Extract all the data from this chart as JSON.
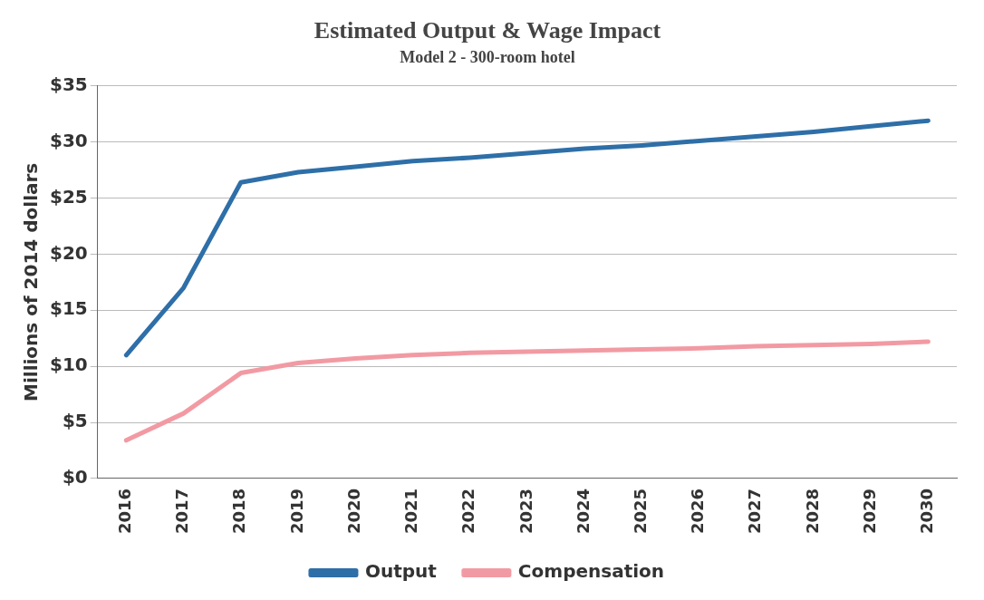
{
  "chart_data": {
    "type": "line",
    "title": "Estimated Output & Wage Impact",
    "subtitle": "Model 2 - 300-room hotel",
    "ylabel": "Millions of 2014 dollars",
    "categories": [
      "2016",
      "2017",
      "2018",
      "2019",
      "2020",
      "2021",
      "2022",
      "2023",
      "2024",
      "2025",
      "2026",
      "2027",
      "2028",
      "2029",
      "2030"
    ],
    "series": [
      {
        "name": "Output",
        "color": "#2e6fa8",
        "values": [
          11,
          17,
          26.4,
          27.3,
          27.8,
          28.3,
          28.6,
          29,
          29.4,
          29.7,
          30.1,
          30.5,
          30.9,
          31.4,
          31.9
        ]
      },
      {
        "name": "Compensation",
        "color": "#f29aa3",
        "values": [
          3.4,
          5.8,
          9.4,
          10.3,
          10.7,
          11,
          11.2,
          11.3,
          11.4,
          11.5,
          11.6,
          11.8,
          11.9,
          12,
          12.2
        ]
      }
    ],
    "ylim": [
      0,
      35
    ],
    "yticks": [
      {
        "value": 0,
        "label": "$0"
      },
      {
        "value": 5,
        "label": "$5"
      },
      {
        "value": 10,
        "label": "$10"
      },
      {
        "value": 15,
        "label": "$15"
      },
      {
        "value": 20,
        "label": "$20"
      },
      {
        "value": 25,
        "label": "$25"
      },
      {
        "value": 30,
        "label": "$30"
      },
      {
        "value": 35,
        "label": "$35"
      }
    ],
    "grid": "y",
    "legend": "bottom",
    "marker": "none",
    "line_style": "solid"
  }
}
